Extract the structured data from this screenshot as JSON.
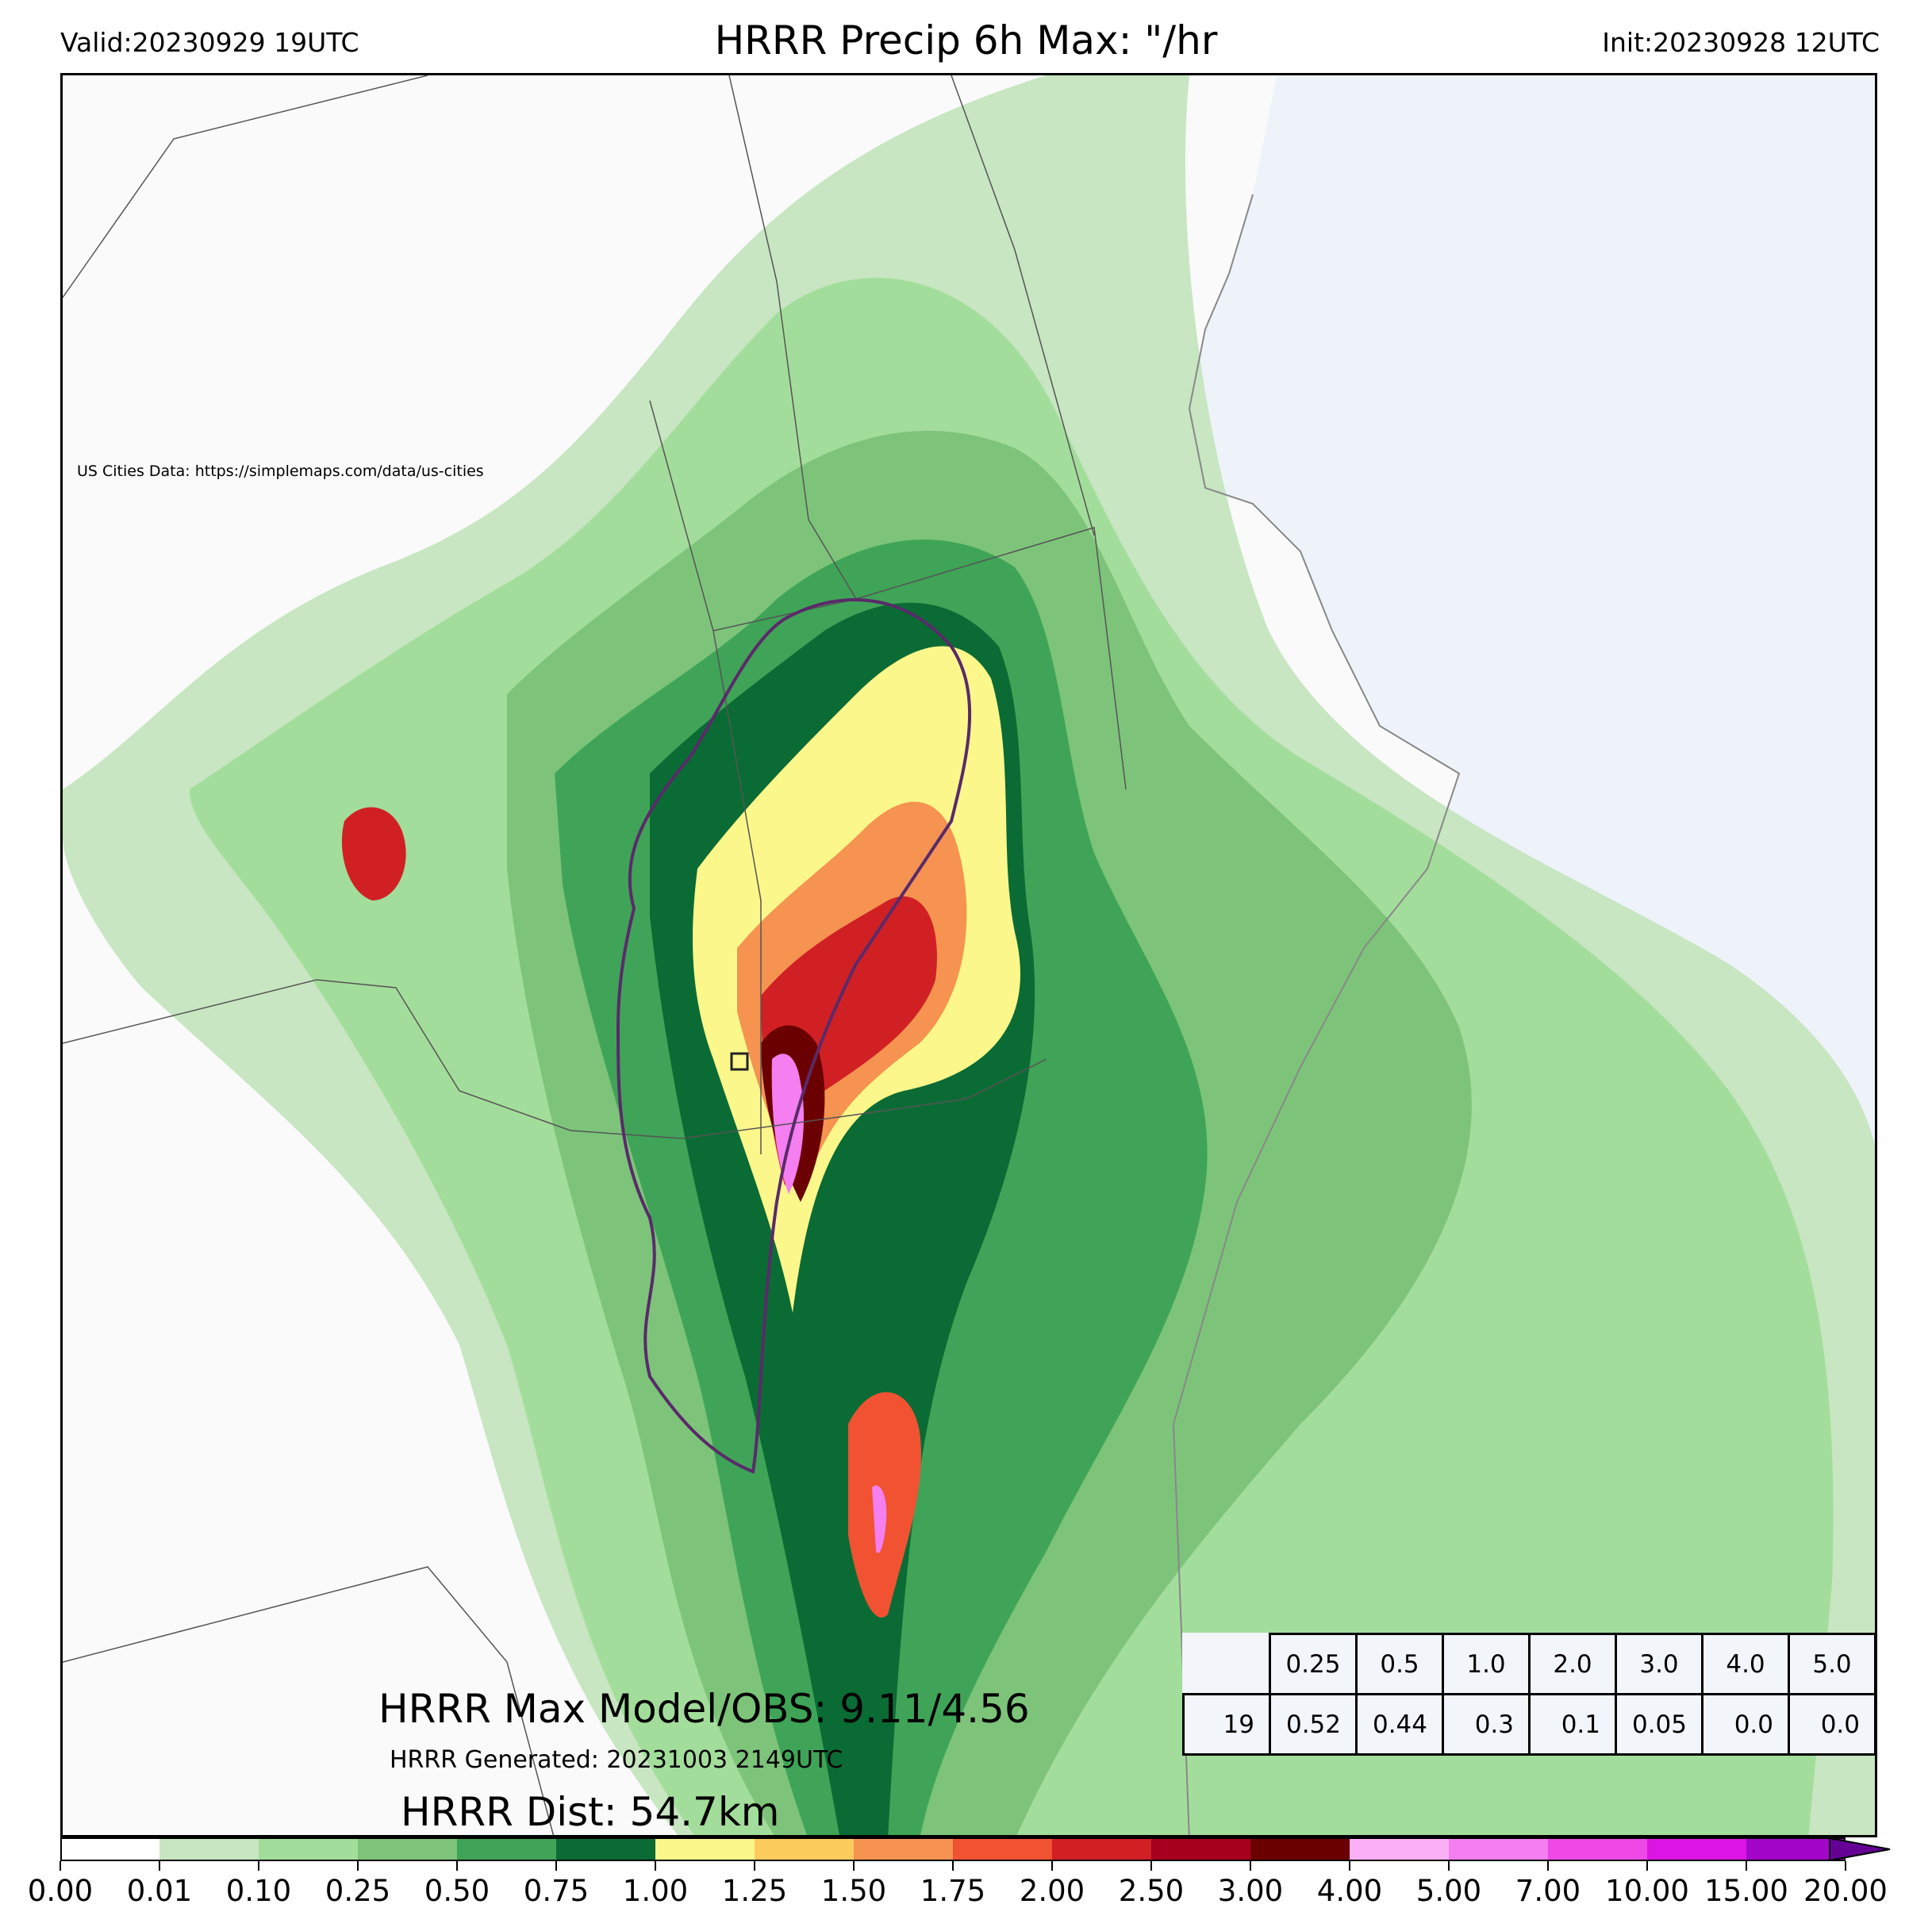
{
  "header": {
    "valid": "Valid:20230929 19UTC",
    "title": "HRRR Precip 6h Max: \"/hr",
    "init": "Init:20230928 12UTC"
  },
  "map": {
    "attribution": "US Cities Data: https://simplemaps.com/data/us-cities",
    "ocean_color": "#eef3fa",
    "land_color": "#fafafa"
  },
  "annotations": {
    "max_model_obs": "HRRR Max Model/OBS: 9.11/4.56",
    "generated": "HRRR Generated: 20231003 2149UTC",
    "distance": "HRRR Dist: 54.7km"
  },
  "threshold_table": {
    "thresholds": [
      "0.25",
      "0.5",
      "1.0",
      "2.0",
      "3.0",
      "4.0",
      "5.0"
    ],
    "row_label": "19",
    "values": [
      "0.52",
      "0.44",
      "0.3",
      "0.1",
      "0.05",
      "0.0",
      "0.0"
    ]
  },
  "colorbar": {
    "ticks": [
      "0.00",
      "0.01",
      "0.10",
      "0.25",
      "0.50",
      "0.75",
      "1.00",
      "1.25",
      "1.50",
      "1.75",
      "2.00",
      "2.50",
      "3.00",
      "4.00",
      "5.00",
      "7.00",
      "10.00",
      "15.00",
      "20.00"
    ],
    "colors": [
      "#ffffff",
      "#c7e6c1",
      "#a3dd9b",
      "#7dc47a",
      "#3fa457",
      "#0b6b34",
      "#fbf78b",
      "#fbcb5c",
      "#f69351",
      "#f05232",
      "#d02024",
      "#a6001e",
      "#6b0000",
      "#fbb0f5",
      "#f57ef0",
      "#ee48e6",
      "#dc14e4",
      "#a406c9",
      "#640094"
    ]
  }
}
